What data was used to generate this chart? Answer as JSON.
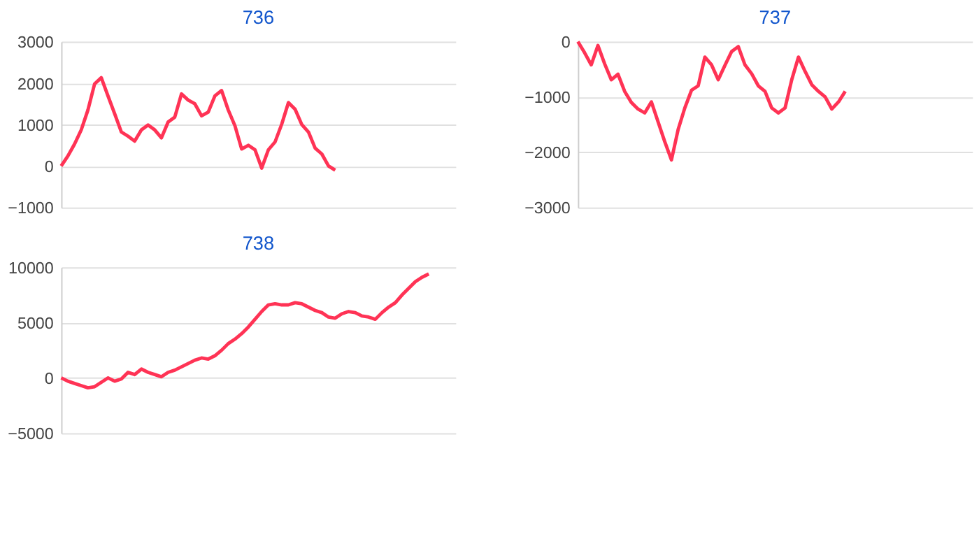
{
  "chart_data": [
    {
      "type": "line",
      "title": "736",
      "categories": [
        null,
        null,
        null,
        null,
        null,
        null,
        null,
        null,
        null,
        null,
        null,
        null,
        null,
        null,
        null,
        null,
        null,
        null,
        null,
        null,
        null,
        null,
        null,
        null,
        null,
        null,
        null,
        null,
        null,
        null,
        null,
        null,
        null,
        null,
        null,
        null,
        null,
        null,
        null,
        null,
        null,
        null,
        null,
        null,
        null,
        null,
        null,
        null,
        null,
        null,
        null,
        null,
        null,
        null,
        null,
        null,
        null,
        null,
        null,
        null
      ],
      "series": [
        {
          "color": "#ff3355",
          "values": [
            0,
            240,
            530,
            870,
            1350,
            1980,
            2130,
            1690,
            1260,
            820,
            720,
            600,
            870,
            990,
            870,
            680,
            1060,
            1180,
            1740,
            1590,
            1500,
            1210,
            1300,
            1690,
            1820,
            1350,
            970,
            410,
            500,
            390,
            -50,
            390,
            580,
            1010,
            1530,
            1370,
            1000,
            820,
            430,
            290,
            0,
            -100,
            null,
            null,
            null,
            null,
            null,
            null,
            null,
            null,
            null,
            null,
            null,
            null,
            null,
            null,
            null,
            null,
            null,
            null
          ]
        }
      ],
      "ylim": [
        -1000,
        3000
      ],
      "yticks": [
        -1000,
        0,
        1000,
        2000,
        3000
      ],
      "grid": "y",
      "tick_labels": "y",
      "marker": "none",
      "line_style": "solid"
    },
    {
      "type": "line",
      "title": "737",
      "categories": [
        null,
        null,
        null,
        null,
        null,
        null,
        null,
        null,
        null,
        null,
        null,
        null,
        null,
        null,
        null,
        null,
        null,
        null,
        null,
        null,
        null,
        null,
        null,
        null,
        null,
        null,
        null,
        null,
        null,
        null,
        null,
        null,
        null,
        null,
        null,
        null,
        null,
        null,
        null,
        null,
        null,
        null,
        null,
        null,
        null,
        null,
        null,
        null,
        null,
        null,
        null,
        null,
        null,
        null,
        null,
        null,
        null,
        null,
        null,
        null
      ],
      "series": [
        {
          "color": "#ff3355",
          "values": [
            0,
            -200,
            -420,
            -70,
            -400,
            -690,
            -590,
            -900,
            -1100,
            -1220,
            -1290,
            -1090,
            -1450,
            -1810,
            -2140,
            -1590,
            -1200,
            -880,
            -800,
            -280,
            -420,
            -690,
            -430,
            -180,
            -90,
            -420,
            -580,
            -800,
            -900,
            -1200,
            -1290,
            -1200,
            -690,
            -280,
            -540,
            -780,
            -900,
            -1000,
            -1220,
            -1090,
            -900,
            null,
            null,
            null,
            null,
            null,
            null,
            null,
            null,
            null,
            null,
            null,
            null,
            null,
            null,
            null,
            null,
            null,
            null,
            null
          ]
        }
      ],
      "ylim": [
        -3000,
        0
      ],
      "yticks": [
        -3000,
        -2000,
        -1000,
        0
      ],
      "grid": "y",
      "tick_labels": "y",
      "marker": "none",
      "line_style": "solid"
    },
    {
      "type": "line",
      "title": "738",
      "categories": [
        null,
        null,
        null,
        null,
        null,
        null,
        null,
        null,
        null,
        null,
        null,
        null,
        null,
        null,
        null,
        null,
        null,
        null,
        null,
        null,
        null,
        null,
        null,
        null,
        null,
        null,
        null,
        null,
        null,
        null,
        null,
        null,
        null,
        null,
        null,
        null,
        null,
        null,
        null,
        null,
        null,
        null,
        null,
        null,
        null,
        null,
        null,
        null,
        null,
        null,
        null,
        null,
        null,
        null,
        null,
        null,
        null,
        null,
        null,
        null
      ],
      "series": [
        {
          "color": "#ff3355",
          "values": [
            0,
            -300,
            -500,
            -700,
            -900,
            -800,
            -400,
            0,
            -300,
            -100,
            500,
            300,
            800,
            500,
            300,
            100,
            500,
            700,
            1000,
            1300,
            1600,
            1800,
            1700,
            2000,
            2500,
            3100,
            3500,
            4000,
            4600,
            5300,
            6000,
            6600,
            6700,
            6600,
            6600,
            6800,
            6700,
            6400,
            6100,
            5900,
            5500,
            5400,
            5800,
            6000,
            5900,
            5600,
            5500,
            5300,
            5900,
            6400,
            6800,
            7500,
            8100,
            8700,
            9100,
            9400,
            null,
            null,
            null,
            null
          ]
        }
      ],
      "ylim": [
        -5000,
        10000
      ],
      "yticks": [
        -5000,
        0,
        5000,
        10000
      ],
      "grid": "y",
      "tick_labels": "y",
      "marker": "none",
      "line_style": "solid"
    }
  ]
}
